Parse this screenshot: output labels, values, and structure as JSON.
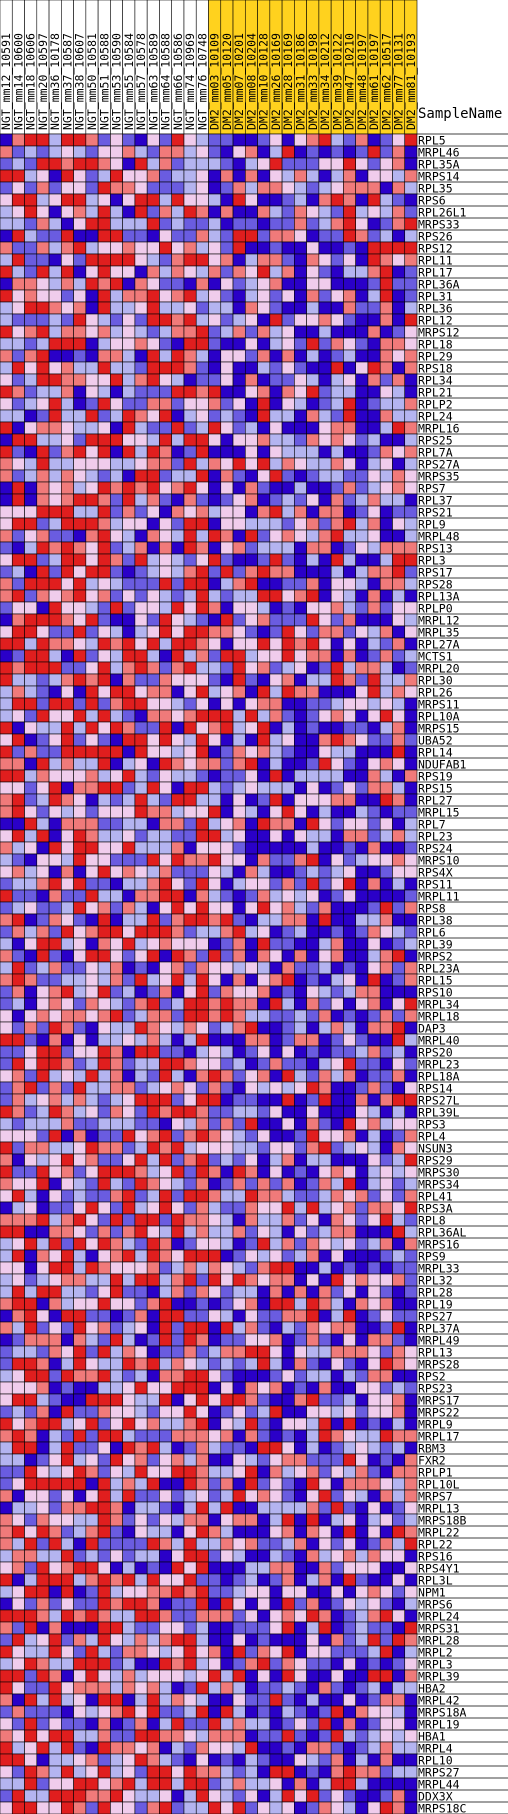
{
  "header": {
    "sample_name_label": "SampleName"
  },
  "colors": {
    "group_a_bg": "#FFFFFF",
    "group_b_bg": "#FFD21E",
    "scale": [
      "#2A00C8",
      "#6A5CE0",
      "#B4B4F0",
      "#F0CCEC",
      "#F07A7A",
      "#E01E1E"
    ],
    "scale_meaning": "dark blue = lowest expression, dark red = highest expression"
  },
  "chart_data": {
    "type": "heatmap",
    "columns": [
      {
        "name": "NGT_mm12_10591",
        "group": "NGT"
      },
      {
        "name": "NGT_mm14_10600",
        "group": "NGT"
      },
      {
        "name": "NGT_mm18_10606",
        "group": "NGT"
      },
      {
        "name": "NGT_mm20_10597",
        "group": "NGT"
      },
      {
        "name": "NGT_mm36_10178",
        "group": "NGT"
      },
      {
        "name": "NGT_mm37_10587",
        "group": "NGT"
      },
      {
        "name": "NGT_mm38_10607",
        "group": "NGT"
      },
      {
        "name": "NGT_mm50_10581",
        "group": "NGT"
      },
      {
        "name": "NGT_mm51_10588",
        "group": "NGT"
      },
      {
        "name": "NGT_mm53_10590",
        "group": "NGT"
      },
      {
        "name": "NGT_mm55_10584",
        "group": "NGT"
      },
      {
        "name": "NGT_mm57_10578",
        "group": "NGT"
      },
      {
        "name": "NGT_mm63_10589",
        "group": "NGT"
      },
      {
        "name": "NGT_mm64_10588",
        "group": "NGT"
      },
      {
        "name": "NGT_mm66_10586",
        "group": "NGT"
      },
      {
        "name": "NGT_mm74_10969",
        "group": "NGT"
      },
      {
        "name": "NGT_mm76_10748",
        "group": "NGT"
      },
      {
        "name": "DM2_mm03_10109",
        "group": "DM2"
      },
      {
        "name": "DM2_mm05_10120",
        "group": "DM2"
      },
      {
        "name": "DM2_mm07_10201",
        "group": "DM2"
      },
      {
        "name": "DM2_mm08_10204",
        "group": "DM2"
      },
      {
        "name": "DM2_mm10_10128",
        "group": "DM2"
      },
      {
        "name": "DM2_mm26_10169",
        "group": "DM2"
      },
      {
        "name": "DM2_mm28_10169",
        "group": "DM2"
      },
      {
        "name": "DM2_mm31_10186",
        "group": "DM2"
      },
      {
        "name": "DM2_mm33_10198",
        "group": "DM2"
      },
      {
        "name": "DM2_mm34_10212",
        "group": "DM2"
      },
      {
        "name": "DM2_mm39_10122",
        "group": "DM2"
      },
      {
        "name": "DM2_mm47_10210",
        "group": "DM2"
      },
      {
        "name": "DM2_mm48_10197",
        "group": "DM2"
      },
      {
        "name": "DM2_mm61_10197",
        "group": "DM2"
      },
      {
        "name": "DM2_mm62_10517",
        "group": "DM2"
      },
      {
        "name": "DM2_mm77_10131",
        "group": "DM2"
      },
      {
        "name": "DM2_mm81_10193",
        "group": "DM2"
      }
    ],
    "rows": [
      "RPL5",
      "MRPL46",
      "RPL35A",
      "MRPS14",
      "RPL35",
      "RPS6",
      "RPL26L1",
      "MRPS33",
      "RPS26",
      "RPS12",
      "RPL11",
      "RPL17",
      "RPL36A",
      "RPL31",
      "RPL36",
      "RPL12",
      "MRPS12",
      "RPL18",
      "RPL29",
      "RPS18",
      "RPL34",
      "RPL21",
      "RPLP2",
      "RPL24",
      "MRPL16",
      "RPS25",
      "RPL7A",
      "RPS27A",
      "MRPS35",
      "RPS7",
      "RPL37",
      "RPS21",
      "RPL9",
      "MRPL48",
      "RPS13",
      "RPL3",
      "RPS17",
      "RPS28",
      "RPL13A",
      "RPLP0",
      "MRPL12",
      "MRPL35",
      "RPL27A",
      "MCTS1",
      "MRPL20",
      "RPL30",
      "RPL26",
      "MRPS11",
      "RPL10A",
      "MRPS15",
      "UBA52",
      "RPL14",
      "NDUFAB1",
      "RPS19",
      "RPS15",
      "RPL27",
      "MRPL15",
      "RPL7",
      "RPL23",
      "RPS24",
      "MRPS10",
      "RPS4X",
      "RPS11",
      "MRPL11",
      "RPS8",
      "RPL38",
      "RPL6",
      "RPL39",
      "MRPS2",
      "RPL23A",
      "RPL15",
      "RPS10",
      "MRPL34",
      "MRPL18",
      "DAP3",
      "MRPL40",
      "RPS20",
      "MRPL23",
      "RPL18A",
      "RPS14",
      "RPS27L",
      "RPL39L",
      "RPS3",
      "RPL4",
      "NSUN3",
      "RPS29",
      "MRPS30",
      "MRPS34",
      "RPL41",
      "RPS3A",
      "RPL8",
      "RPL36AL",
      "MRPS16",
      "RPS9",
      "MRPL33",
      "RPL32",
      "RPL28",
      "RPL19",
      "RPS27",
      "RPL37A",
      "MRPL49",
      "RPL13",
      "MRPS28",
      "RPS2",
      "RPS23",
      "MRPS17",
      "MRPS22",
      "MRPL9",
      "MRPL17",
      "RBM3",
      "FXR2",
      "RPLP1",
      "RPL10L",
      "MRPS7",
      "MRPL13",
      "MRPS18B",
      "MRPL22",
      "RPL22",
      "RPS16",
      "RPS4Y1",
      "RPL3L",
      "NPM1",
      "MRPS6",
      "MRPL24",
      "MRPS31",
      "MRPL28",
      "MRPL2",
      "MRPL3",
      "MRPL39",
      "HBA2",
      "MRPL42",
      "MRPS18A",
      "MRPL19",
      "HBA1",
      "MRPL4",
      "RPL10",
      "MRPS27",
      "MRPL44",
      "DDX3X",
      "MRPS18C"
    ],
    "value_levels": [
      "lowest",
      "low",
      "slightly low",
      "slightly high",
      "high",
      "highest"
    ],
    "value_range": [
      0,
      5
    ]
  }
}
